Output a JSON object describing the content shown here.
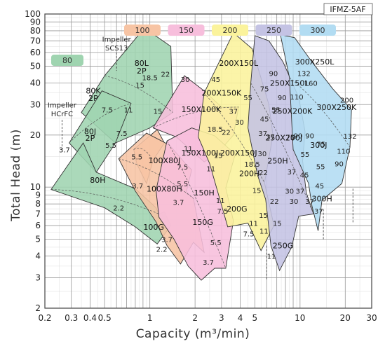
{
  "chart_data": {
    "type": "area",
    "model_code": "IFMZ-5AF",
    "xlabel": "Capacity (m³/min)",
    "ylabel": "Total Head (m)",
    "x_scale": "log",
    "y_scale": "log",
    "xlim": [
      0.2,
      30
    ],
    "ylim": [
      2,
      100
    ],
    "x_ticks": [
      {
        "v": 0.2,
        "label": "0.2"
      },
      {
        "v": 0.3,
        "label": "0.3"
      },
      {
        "v": 0.4,
        "label": "0.4"
      },
      {
        "v": 0.5,
        "label": "0.5"
      },
      {
        "v": 1,
        "label": "1"
      },
      {
        "v": 2,
        "label": "2"
      },
      {
        "v": 3,
        "label": "3"
      },
      {
        "v": 4,
        "label": "4"
      },
      {
        "v": 5,
        "label": "5"
      },
      {
        "v": 10,
        "label": "10"
      },
      {
        "v": 20,
        "label": "20"
      },
      {
        "v": 30,
        "label": "30"
      }
    ],
    "y_ticks": [
      {
        "v": 2,
        "label": "2"
      },
      {
        "v": 3,
        "label": "3"
      },
      {
        "v": 4,
        "label": "4"
      },
      {
        "v": 5,
        "label": "5"
      },
      {
        "v": 6,
        "label": "6"
      },
      {
        "v": 7,
        "label": "7"
      },
      {
        "v": 8,
        "label": "8"
      },
      {
        "v": 9,
        "label": "9"
      },
      {
        "v": 10,
        "label": "10"
      },
      {
        "v": 20,
        "label": "20"
      },
      {
        "v": 30,
        "label": "30"
      },
      {
        "v": 40,
        "label": "40"
      },
      {
        "v": 50,
        "label": "50"
      },
      {
        "v": 60,
        "label": "60"
      },
      {
        "v": 70,
        "label": "70"
      },
      {
        "v": 80,
        "label": "80"
      },
      {
        "v": 90,
        "label": "90"
      },
      {
        "v": 100,
        "label": "100"
      }
    ],
    "grid": true,
    "legend": [
      {
        "name": "80",
        "color": "#9fd4b0",
        "position": "left"
      },
      {
        "name": "100",
        "color": "#f7c4a4",
        "position": "top"
      },
      {
        "name": "150",
        "color": "#f7bedc",
        "position": "top"
      },
      {
        "name": "200",
        "color": "#fbf39c",
        "position": "top"
      },
      {
        "name": "250",
        "color": "#c4c3e4",
        "position": "top"
      },
      {
        "name": "300",
        "color": "#b2dcf2",
        "position": "top"
      }
    ],
    "notes": [
      {
        "text": "Impeller",
        "x": 0.6,
        "y": 72
      },
      {
        "text": "SCS13",
        "x": 0.6,
        "y": 64
      },
      {
        "text": "Impeller",
        "x": 0.26,
        "y": 30
      },
      {
        "text": "HCrFC",
        "x": 0.26,
        "y": 26.6
      }
    ],
    "regions": [
      {
        "group": "80",
        "color": "#9fd4b0",
        "points": [
          [
            0.5,
            44
          ],
          [
            0.92,
            83
          ],
          [
            1.38,
            65
          ],
          [
            1.42,
            27
          ],
          [
            1.0,
            22
          ],
          [
            0.59,
            18
          ],
          [
            0.35,
            27
          ]
        ]
      },
      {
        "group": "80",
        "color": "#9fd4b0",
        "points": [
          [
            0.29,
            18
          ],
          [
            0.48,
            36
          ],
          [
            0.75,
            30.5
          ],
          [
            0.59,
            18
          ],
          [
            0.44,
            12.2
          ]
        ]
      },
      {
        "group": "80",
        "color": "#9fd4b0",
        "points": [
          [
            0.22,
            9.7
          ],
          [
            0.36,
            18
          ],
          [
            0.44,
            12.2
          ],
          [
            0.8,
            9.8
          ],
          [
            1.0,
            8.2
          ],
          [
            1.1,
            7.6
          ],
          [
            1.15,
            7.0
          ],
          [
            1.25,
            7.2
          ],
          [
            1.38,
            6.0
          ],
          [
            1.12,
            4.7
          ],
          [
            0.8,
            5.9
          ],
          [
            0.5,
            7.6
          ]
        ]
      },
      {
        "group": "100",
        "color": "#f7c4a4",
        "points": [
          [
            0.78,
            16.5
          ],
          [
            1.12,
            21.5
          ],
          [
            1.25,
            18
          ],
          [
            1.05,
            14.3
          ],
          [
            0.95,
            10.5
          ],
          [
            0.82,
            13.6
          ]
        ]
      },
      {
        "group": "100",
        "color": "#f7c4a4",
        "points": [
          [
            0.62,
            14.6
          ],
          [
            0.95,
            20.5
          ],
          [
            1.35,
            17.5
          ],
          [
            1.75,
            13.5
          ],
          [
            1.9,
            12.6
          ],
          [
            1.75,
            9.4
          ],
          [
            1.95,
            8.6
          ],
          [
            2.3,
            4.2
          ],
          [
            1.95,
            4.8
          ],
          [
            1.6,
            3.6
          ],
          [
            1.3,
            4.6
          ],
          [
            1.1,
            6.3
          ],
          [
            0.8,
            9.5
          ]
        ]
      },
      {
        "group": "150",
        "color": "#f7bedc",
        "points": [
          [
            1.05,
            22
          ],
          [
            1.7,
            44
          ],
          [
            2.3,
            36
          ],
          [
            3.0,
            29
          ],
          [
            3.9,
            29
          ],
          [
            3.6,
            20
          ],
          [
            2.8,
            15.5
          ],
          [
            2.3,
            14
          ],
          [
            1.5,
            19.5
          ]
        ]
      },
      {
        "group": "150",
        "color": "#f7bedc",
        "points": [
          [
            1.3,
            18.5
          ],
          [
            1.9,
            22
          ],
          [
            2.7,
            19.8
          ],
          [
            3.7,
            15.5
          ],
          [
            3.2,
            9.9
          ],
          [
            3.6,
            6.4
          ],
          [
            3.2,
            3.4
          ],
          [
            2.7,
            3.4
          ],
          [
            2.2,
            2.9
          ],
          [
            1.8,
            3.5
          ],
          [
            1.45,
            5.0
          ],
          [
            1.15,
            6.7
          ],
          [
            1.1,
            9.6
          ]
        ]
      },
      {
        "group": "200",
        "color": "#fbf39c",
        "points": [
          [
            2.3,
            35
          ],
          [
            3.6,
            78
          ],
          [
            4.8,
            63
          ],
          [
            5.4,
            45
          ],
          [
            6.2,
            30
          ],
          [
            6.6,
            20
          ],
          [
            5.8,
            10.6
          ],
          [
            6.7,
            6.0
          ],
          [
            5.5,
            4.3
          ],
          [
            4.5,
            6.2
          ],
          [
            3.3,
            5.9
          ],
          [
            2.5,
            13.7
          ],
          [
            2.1,
            19.5
          ]
        ]
      },
      {
        "group": "250",
        "color": "#c4c3e4",
        "points": [
          [
            4.7,
            40
          ],
          [
            5.0,
            75
          ],
          [
            6.2,
            70
          ],
          [
            7.7,
            53
          ],
          [
            9.8,
            33
          ],
          [
            10.8,
            21
          ],
          [
            10.4,
            14.2
          ],
          [
            11.0,
            9.3
          ],
          [
            12.3,
            7.0
          ],
          [
            9.8,
            6.8
          ],
          [
            8.8,
            4.5
          ],
          [
            7.3,
            3.3
          ],
          [
            6.4,
            4.6
          ],
          [
            5.9,
            8.5
          ],
          [
            5.2,
            11.8
          ],
          [
            4.5,
            22
          ]
        ]
      },
      {
        "group": "300",
        "color": "#b2dcf2",
        "points": [
          [
            8.5,
            43
          ],
          [
            7.4,
            76
          ],
          [
            9.2,
            73
          ],
          [
            11.8,
            54
          ],
          [
            16.5,
            37
          ],
          [
            22.0,
            28
          ],
          [
            21.5,
            17
          ],
          [
            19.0,
            10.5
          ],
          [
            14.0,
            8.4
          ],
          [
            13.2,
            5.6
          ],
          [
            12.0,
            7.8
          ],
          [
            11.4,
            10.5
          ],
          [
            9.0,
            16.5
          ]
        ]
      }
    ],
    "curve_labels": [
      {
        "text": "80L",
        "x": 0.88,
        "y": 52
      },
      {
        "text": "2P",
        "x": 0.88,
        "y": 47
      },
      {
        "text": "80K",
        "x": 0.42,
        "y": 36
      },
      {
        "text": "2P",
        "x": 0.42,
        "y": 32.7
      },
      {
        "text": "80J",
        "x": 0.4,
        "y": 21
      },
      {
        "text": "2P",
        "x": 0.4,
        "y": 19.2
      },
      {
        "text": "80H",
        "x": 0.45,
        "y": 11
      },
      {
        "text": "100X80J",
        "x": 1.25,
        "y": 14.3
      },
      {
        "text": "100X80H",
        "x": 1.25,
        "y": 9.8
      },
      {
        "text": "100G",
        "x": 1.06,
        "y": 5.9
      },
      {
        "text": "150X100K",
        "x": 2.2,
        "y": 28.2
      },
      {
        "text": "150X100J",
        "x": 2.15,
        "y": 15.8
      },
      {
        "text": "150H",
        "x": 2.3,
        "y": 9.3
      },
      {
        "text": "150G",
        "x": 2.25,
        "y": 6.3
      },
      {
        "text": "200X150L",
        "x": 3.9,
        "y": 52
      },
      {
        "text": "200X150K",
        "x": 3.0,
        "y": 35
      },
      {
        "text": "200X150J",
        "x": 3.9,
        "y": 15.8
      },
      {
        "text": "200H",
        "x": 4.6,
        "y": 12
      },
      {
        "text": "200G",
        "x": 3.8,
        "y": 7.5
      },
      {
        "text": "250X200K",
        "x": 8.9,
        "y": 27.5
      },
      {
        "text": "250X200J",
        "x": 7.8,
        "y": 19.3
      },
      {
        "text": "250H",
        "x": 7.1,
        "y": 14.2
      },
      {
        "text": "250G",
        "x": 7.7,
        "y": 4.6
      },
      {
        "text": "300X250L",
        "x": 12.5,
        "y": 53
      },
      {
        "text": "250X150L",
        "x": 8.5,
        "y": 40
      },
      {
        "text": "300X250K",
        "x": 17.5,
        "y": 29
      },
      {
        "text": "300J",
        "x": 13.3,
        "y": 17.5
      },
      {
        "text": "300H",
        "x": 14.0,
        "y": 8.6
      }
    ],
    "kw_labels": [
      {
        "text": "18.5",
        "x": 1.0,
        "y": 43
      },
      {
        "text": "22",
        "x": 1.27,
        "y": 45
      },
      {
        "text": "30",
        "x": 1.72,
        "y": 42
      },
      {
        "text": "15",
        "x": 0.86,
        "y": 39
      },
      {
        "text": "11",
        "x": 0.72,
        "y": 28
      },
      {
        "text": "7.5",
        "x": 0.52,
        "y": 28
      },
      {
        "text": "7.5",
        "x": 0.65,
        "y": 20.5
      },
      {
        "text": "5.5",
        "x": 0.55,
        "y": 17.5
      },
      {
        "text": "3.7",
        "x": 0.27,
        "y": 16.5
      },
      {
        "text": "5.5",
        "x": 0.82,
        "y": 15
      },
      {
        "text": "3.7",
        "x": 0.83,
        "y": 10.2
      },
      {
        "text": "2.2",
        "x": 0.62,
        "y": 7.6
      },
      {
        "text": "15",
        "x": 1.13,
        "y": 27.5
      },
      {
        "text": "18.5",
        "x": 2.72,
        "y": 21.7
      },
      {
        "text": "22",
        "x": 3.22,
        "y": 20.8
      },
      {
        "text": "11",
        "x": 1.8,
        "y": 16.7
      },
      {
        "text": "7.5",
        "x": 1.65,
        "y": 13.1
      },
      {
        "text": "15",
        "x": 2.85,
        "y": 15.3
      },
      {
        "text": "11",
        "x": 2.55,
        "y": 12.8
      },
      {
        "text": "5.5",
        "x": 1.65,
        "y": 10.5
      },
      {
        "text": "3.7",
        "x": 1.55,
        "y": 8.2
      },
      {
        "text": "3.7",
        "x": 1.3,
        "y": 5.0
      },
      {
        "text": "2.2",
        "x": 1.2,
        "y": 4.4
      },
      {
        "text": "11",
        "x": 2.95,
        "y": 8.4
      },
      {
        "text": "7.5",
        "x": 3.05,
        "y": 7.3
      },
      {
        "text": "5.5",
        "x": 2.75,
        "y": 4.8
      },
      {
        "text": "3.7",
        "x": 2.45,
        "y": 3.7
      },
      {
        "text": "45",
        "x": 2.75,
        "y": 42
      },
      {
        "text": "55",
        "x": 4.5,
        "y": 33
      },
      {
        "text": "75",
        "x": 5.8,
        "y": 37
      },
      {
        "text": "90",
        "x": 6.65,
        "y": 45.5
      },
      {
        "text": "37",
        "x": 3.6,
        "y": 27.5
      },
      {
        "text": "30",
        "x": 3.95,
        "y": 23.8
      },
      {
        "text": "45",
        "x": 5.8,
        "y": 24.9
      },
      {
        "text": "37",
        "x": 5.65,
        "y": 20.5
      },
      {
        "text": "18.5",
        "x": 4.8,
        "y": 13.6
      },
      {
        "text": "30",
        "x": 5.6,
        "y": 15.7
      },
      {
        "text": "22",
        "x": 5.7,
        "y": 12.2
      },
      {
        "text": "15",
        "x": 5.15,
        "y": 9.6
      },
      {
        "text": "11",
        "x": 4.9,
        "y": 6.2
      },
      {
        "text": "7.5",
        "x": 4.55,
        "y": 5.4
      },
      {
        "text": "15",
        "x": 5.7,
        "y": 6.9
      },
      {
        "text": "11",
        "x": 5.75,
        "y": 5.6
      },
      {
        "text": "90",
        "x": 7.6,
        "y": 33
      },
      {
        "text": "110",
        "x": 9.5,
        "y": 33.3
      },
      {
        "text": "132",
        "x": 10.6,
        "y": 45.5
      },
      {
        "text": "160",
        "x": 11.8,
        "y": 40
      },
      {
        "text": "55",
        "x": 6.9,
        "y": 28
      },
      {
        "text": "37",
        "x": 6.35,
        "y": 19.6
      },
      {
        "text": "75",
        "x": 8.6,
        "y": 19.5
      },
      {
        "text": "90",
        "x": 9.7,
        "y": 19.9
      },
      {
        "text": "90",
        "x": 11.6,
        "y": 19.9
      },
      {
        "text": "75",
        "x": 13.8,
        "y": 17.8
      },
      {
        "text": "55",
        "x": 10.8,
        "y": 15.5
      },
      {
        "text": "37",
        "x": 8.8,
        "y": 12.3
      },
      {
        "text": "45",
        "x": 10.7,
        "y": 11.8
      },
      {
        "text": "30",
        "x": 8.5,
        "y": 9.5
      },
      {
        "text": "37",
        "x": 10.0,
        "y": 9.5
      },
      {
        "text": "22",
        "x": 6.75,
        "y": 8.3
      },
      {
        "text": "30",
        "x": 9.1,
        "y": 8.3
      },
      {
        "text": "15",
        "x": 7.05,
        "y": 6.2
      },
      {
        "text": "11",
        "x": 6.45,
        "y": 4.0
      },
      {
        "text": "200",
        "x": 20.5,
        "y": 32
      },
      {
        "text": "132",
        "x": 21.5,
        "y": 19.8
      },
      {
        "text": "110",
        "x": 19.5,
        "y": 16.2
      },
      {
        "text": "90",
        "x": 18.2,
        "y": 13.7
      },
      {
        "text": "55",
        "x": 13.7,
        "y": 13.2
      },
      {
        "text": "45",
        "x": 13.5,
        "y": 10.2
      },
      {
        "text": "37",
        "x": 11.6,
        "y": 8.3
      },
      {
        "text": "37",
        "x": 13.3,
        "y": 7.3
      }
    ]
  }
}
